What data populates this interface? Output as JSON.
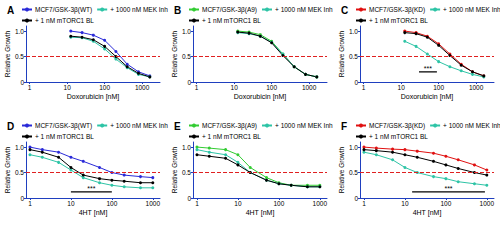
{
  "chart_data": [
    {
      "type": "line",
      "title": "A",
      "xlabel": "Doxorubicin [nM]",
      "ylabel": "Relative Growth",
      "log": "x",
      "grid": false,
      "legend": "top",
      "marker": "circle",
      "x": [
        12.5,
        25,
        50,
        100,
        200,
        400,
        800,
        1600
      ],
      "xlim": [
        0.8,
        3000
      ],
      "xticks": [
        1,
        10,
        100,
        1000
      ],
      "ylim": [
        0,
        1.1
      ],
      "yticks": [
        0,
        0.5,
        {
          "value": 1,
          "label": "1.0"
        }
      ],
      "threshold": {
        "value": 0.5,
        "color": "#e02020",
        "line_style": "dashed"
      },
      "series": [
        {
          "name": "MCF7/GSK-3β(WT)",
          "color": "#2a2ad8",
          "values": [
            1.0,
            0.97,
            0.92,
            0.82,
            0.6,
            0.35,
            0.2,
            0.12
          ]
        },
        {
          "name": "+ 1000 nM MEK Inh",
          "color": "#2ec4a6",
          "values": [
            0.88,
            0.87,
            0.8,
            0.65,
            0.45,
            0.28,
            0.15,
            0.1
          ]
        },
        {
          "name": "+ 1 nM mTORC1 BL",
          "color": "#000000",
          "values": [
            0.9,
            0.88,
            0.83,
            0.7,
            0.5,
            0.3,
            0.17,
            0.1
          ]
        }
      ],
      "significance": []
    },
    {
      "type": "line",
      "title": "B",
      "xlabel": "Doxorubicin [nM]",
      "ylabel": "Relative Growth",
      "log": "x",
      "grid": false,
      "legend": "top",
      "marker": "circle",
      "x": [
        12.5,
        25,
        50,
        100,
        200,
        400,
        800,
        1600
      ],
      "xlim": [
        0.8,
        3000
      ],
      "xticks": [
        1,
        10,
        100,
        1000
      ],
      "ylim": [
        0,
        1.1
      ],
      "yticks": [
        0,
        0.5,
        {
          "value": 1,
          "label": "1.0"
        }
      ],
      "threshold": {
        "value": 0.5,
        "color": "#e02020",
        "line_style": "dashed"
      },
      "series": [
        {
          "name": "MCF7/GSK-3β(A9)",
          "color": "#33cc33",
          "values": [
            1.0,
            0.98,
            0.93,
            0.8,
            0.55,
            0.3,
            0.15,
            0.1
          ]
        },
        {
          "name": "+ 1000 nM MEK Inh",
          "color": "#2ec4a6",
          "values": [
            0.97,
            0.95,
            0.9,
            0.78,
            0.55,
            0.3,
            0.15,
            0.1
          ]
        },
        {
          "name": "+ 1 nM mTORC1 BL",
          "color": "#000000",
          "values": [
            0.98,
            0.96,
            0.9,
            0.77,
            0.52,
            0.3,
            0.15,
            0.1
          ]
        }
      ],
      "significance": []
    },
    {
      "type": "line",
      "title": "C",
      "xlabel": "Doxorubicin [nM]",
      "ylabel": "Relative Growth",
      "log": "x",
      "grid": false,
      "legend": "top",
      "marker": "circle",
      "x": [
        12.5,
        25,
        50,
        100,
        200,
        400,
        800,
        1600
      ],
      "xlim": [
        0.8,
        3000
      ],
      "xticks": [
        1,
        10,
        100,
        1000
      ],
      "ylim": [
        0,
        1.1
      ],
      "yticks": [
        0,
        0.5,
        {
          "value": 1,
          "label": "1.0"
        }
      ],
      "threshold": {
        "value": 0.5,
        "color": "#e02020",
        "line_style": "dashed"
      },
      "series": [
        {
          "name": "MCF7/GSK-3β(KD)",
          "color": "#e01010",
          "values": [
            1.0,
            0.97,
            0.9,
            0.75,
            0.55,
            0.35,
            0.2,
            0.12
          ]
        },
        {
          "name": "+ 1000 nM MEK Inh",
          "color": "#2ec4a6",
          "values": [
            0.8,
            0.7,
            0.55,
            0.4,
            0.3,
            0.22,
            0.15,
            0.1
          ]
        },
        {
          "name": "+ 1 nM mTORC1 BL",
          "color": "#000000",
          "values": [
            0.97,
            0.95,
            0.88,
            0.72,
            0.52,
            0.33,
            0.2,
            0.12
          ]
        }
      ],
      "significance": [
        {
          "x": [
            30,
            90
          ],
          "y": 0.2,
          "label": "***"
        }
      ]
    },
    {
      "type": "line",
      "title": "D",
      "xlabel": "4HT [nM]",
      "ylabel": "Relative Growth",
      "log": "x",
      "grid": false,
      "legend": "top",
      "marker": "circle",
      "x": [
        1,
        2,
        5,
        10,
        20,
        50,
        100,
        200,
        500,
        1000
      ],
      "xlim": [
        0.8,
        1500
      ],
      "xticks": [
        1,
        10,
        100,
        1000
      ],
      "ylim": [
        0,
        1.1
      ],
      "yticks": [
        0,
        0.5,
        {
          "value": 1,
          "label": "1.0"
        }
      ],
      "threshold": {
        "value": 0.5,
        "color": "#e02020",
        "line_style": "dashed"
      },
      "series": [
        {
          "name": "MCF7/GSK-3β(WT)",
          "color": "#2a2ad8",
          "values": [
            1.0,
            0.95,
            0.9,
            0.8,
            0.72,
            0.6,
            0.5,
            0.45,
            0.42,
            0.4
          ]
        },
        {
          "name": "+ 1000 nM MEK Inh",
          "color": "#2ec4a6",
          "values": [
            0.85,
            0.8,
            0.7,
            0.55,
            0.4,
            0.3,
            0.25,
            0.22,
            0.2,
            0.2
          ]
        },
        {
          "name": "+ 1 nM mTORC1 BL",
          "color": "#000000",
          "values": [
            0.95,
            0.9,
            0.8,
            0.6,
            0.45,
            0.38,
            0.35,
            0.33,
            0.3,
            0.3
          ]
        }
      ],
      "significance": [
        {
          "x": [
            10,
            100
          ],
          "y": 0.12,
          "label": "***"
        }
      ]
    },
    {
      "type": "line",
      "title": "E",
      "xlabel": "4HT [nM]",
      "ylabel": "Relative Growth",
      "log": "x",
      "grid": false,
      "legend": "top",
      "marker": "circle",
      "x": [
        1,
        2,
        5,
        10,
        20,
        50,
        100,
        200,
        500,
        1000
      ],
      "xlim": [
        0.8,
        1500
      ],
      "xticks": [
        1,
        10,
        100,
        1000
      ],
      "ylim": [
        0,
        1.1
      ],
      "yticks": [
        0,
        0.5,
        {
          "value": 1,
          "label": "1.0"
        }
      ],
      "threshold": {
        "value": 0.5,
        "color": "#e02020",
        "line_style": "dashed"
      },
      "series": [
        {
          "name": "MCF7/GSK-3β(A9)",
          "color": "#33cc33",
          "values": [
            1.0,
            0.98,
            0.95,
            0.85,
            0.6,
            0.4,
            0.3,
            0.25,
            0.25,
            0.25
          ]
        },
        {
          "name": "+ 1000 nM MEK Inh",
          "color": "#2ec4a6",
          "values": [
            0.95,
            0.9,
            0.85,
            0.7,
            0.5,
            0.35,
            0.28,
            0.25,
            0.22,
            0.22
          ]
        },
        {
          "name": "+ 1 nM mTORC1 BL",
          "color": "#000000",
          "values": [
            0.85,
            0.82,
            0.78,
            0.65,
            0.5,
            0.35,
            0.28,
            0.25,
            0.22,
            0.22
          ]
        }
      ],
      "significance": []
    },
    {
      "type": "line",
      "title": "F",
      "xlabel": "4HT [nM]",
      "ylabel": "Relative Growth",
      "log": "x",
      "grid": false,
      "legend": "top",
      "marker": "circle",
      "x": [
        1,
        2,
        5,
        10,
        20,
        50,
        100,
        200,
        500,
        1000
      ],
      "xlim": [
        0.8,
        1500
      ],
      "xticks": [
        1,
        10,
        100,
        1000
      ],
      "ylim": [
        0,
        1.1
      ],
      "yticks": [
        0,
        0.5,
        {
          "value": 1,
          "label": "1.0"
        }
      ],
      "threshold": {
        "value": 0.5,
        "color": "#e02020",
        "line_style": "dashed"
      },
      "series": [
        {
          "name": "MCF7/GSK-3β(KD)",
          "color": "#e01010",
          "values": [
            1.0,
            0.98,
            0.96,
            0.95,
            0.92,
            0.88,
            0.82,
            0.75,
            0.65,
            0.55
          ]
        },
        {
          "name": "+ 1000 nM MEK Inh",
          "color": "#2ec4a6",
          "values": [
            0.9,
            0.85,
            0.75,
            0.6,
            0.5,
            0.42,
            0.38,
            0.32,
            0.28,
            0.25
          ]
        },
        {
          "name": "+ 1 nM mTORC1 BL",
          "color": "#000000",
          "values": [
            0.95,
            0.93,
            0.9,
            0.85,
            0.8,
            0.72,
            0.65,
            0.58,
            0.5,
            0.45
          ]
        }
      ],
      "significance": [
        {
          "x": [
            15,
            900
          ],
          "y": 0.12,
          "label": "***"
        }
      ]
    }
  ]
}
